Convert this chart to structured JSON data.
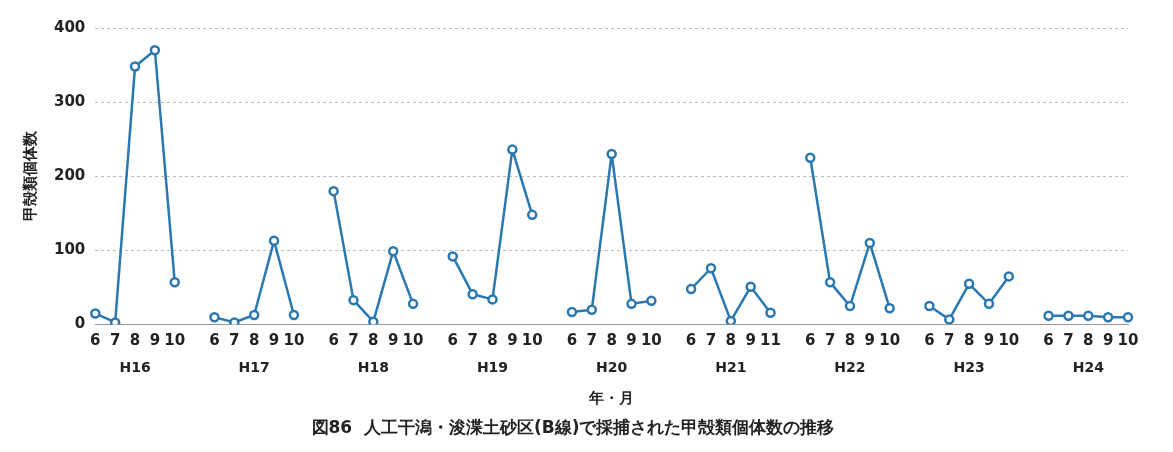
{
  "chart_data": {
    "type": "line",
    "title": "図86  人工干潟・浚渫土砂区(B線)で採捕された甲殻類個体数の推移",
    "xlabel": "年・月",
    "ylabel": "甲殻類個体数",
    "categories": [
      "6",
      "7",
      "8",
      "9",
      "10",
      null,
      "6",
      "7",
      "8",
      "9",
      "10",
      null,
      "6",
      "7",
      "8",
      "9",
      "10",
      null,
      "6",
      "7",
      "8",
      "9",
      "10",
      null,
      "6",
      "7",
      "8",
      "9",
      "10",
      null,
      "6",
      "7",
      "8",
      "9",
      "11",
      null,
      "6",
      "7",
      "8",
      "9",
      "10",
      null,
      "6",
      "7",
      "8",
      "9",
      "10",
      null,
      "6",
      "7",
      "8",
      "9",
      "10"
    ],
    "series": [
      {
        "color": "#2a78b0",
        "values": [
          15,
          3,
          348,
          370,
          57,
          null,
          10,
          3,
          13,
          113,
          13,
          null,
          180,
          33,
          4,
          99,
          28,
          null,
          92,
          41,
          34,
          236,
          148,
          null,
          17,
          20,
          230,
          28,
          32,
          null,
          48,
          76,
          5,
          51,
          16,
          null,
          225,
          57,
          25,
          110,
          22,
          null,
          25,
          7,
          55,
          28,
          65,
          null,
          12,
          12,
          12,
          10,
          10
        ]
      }
    ],
    "annotations": [
      "H16",
      "H17",
      "H18",
      "H19",
      "H20",
      "H21",
      "H22",
      "H23",
      "H24"
    ],
    "ylim": [
      0,
      400
    ],
    "yticks": [
      0,
      100,
      200,
      300,
      400
    ],
    "grid": "y",
    "legend": false,
    "marker": "circle",
    "line_style": "solid"
  }
}
